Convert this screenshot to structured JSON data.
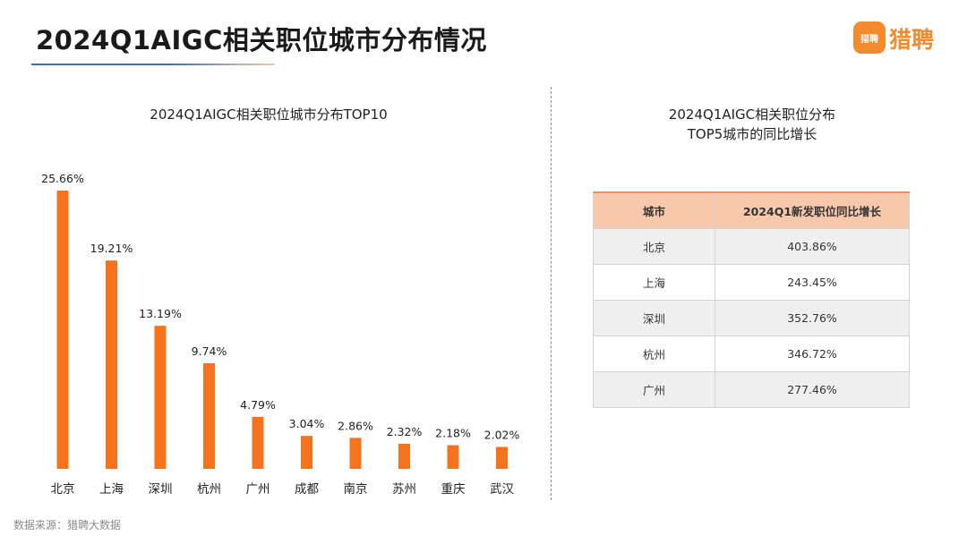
{
  "header": {
    "title": "2024Q1AIGC相关职位城市分布情况",
    "logo_badge_text": "猎聘",
    "logo_text": "猎聘"
  },
  "colors": {
    "bar": "#f4731c",
    "accent_orange": "#f28b2d",
    "title_underline": "#3f6fb5",
    "table_header_bg": "#f8c8ad"
  },
  "chart_data": {
    "type": "bar",
    "title": "2024Q1AIGC相关职位城市分布TOP10",
    "categories": [
      "北京",
      "上海",
      "深圳",
      "杭州",
      "广州",
      "成都",
      "南京",
      "苏州",
      "重庆",
      "武汉"
    ],
    "values": [
      25.66,
      19.21,
      13.19,
      9.74,
      4.79,
      3.04,
      2.86,
      2.32,
      2.18,
      2.02
    ],
    "data_labels": [
      "25.66%",
      "19.21%",
      "13.19%",
      "9.74%",
      "4.79%",
      "3.04%",
      "2.86%",
      "2.32%",
      "2.18%",
      "2.02%"
    ],
    "unit": "%",
    "xlabel": "",
    "ylabel": "",
    "ylim": [
      0,
      25.66
    ],
    "grid": false,
    "legend": "none"
  },
  "table": {
    "title_line1": "2024Q1AIGC相关职位分布",
    "title_line2": "TOP5城市的同比增长",
    "headers": [
      "城市",
      "2024Q1新发职位同比增长"
    ],
    "rows": [
      [
        "北京",
        "403.86%"
      ],
      [
        "上海",
        "243.45%"
      ],
      [
        "深圳",
        "352.76%"
      ],
      [
        "杭州",
        "346.72%"
      ],
      [
        "广州",
        "277.46%"
      ]
    ]
  },
  "footer": {
    "source": "数据来源：猎聘大数据"
  }
}
